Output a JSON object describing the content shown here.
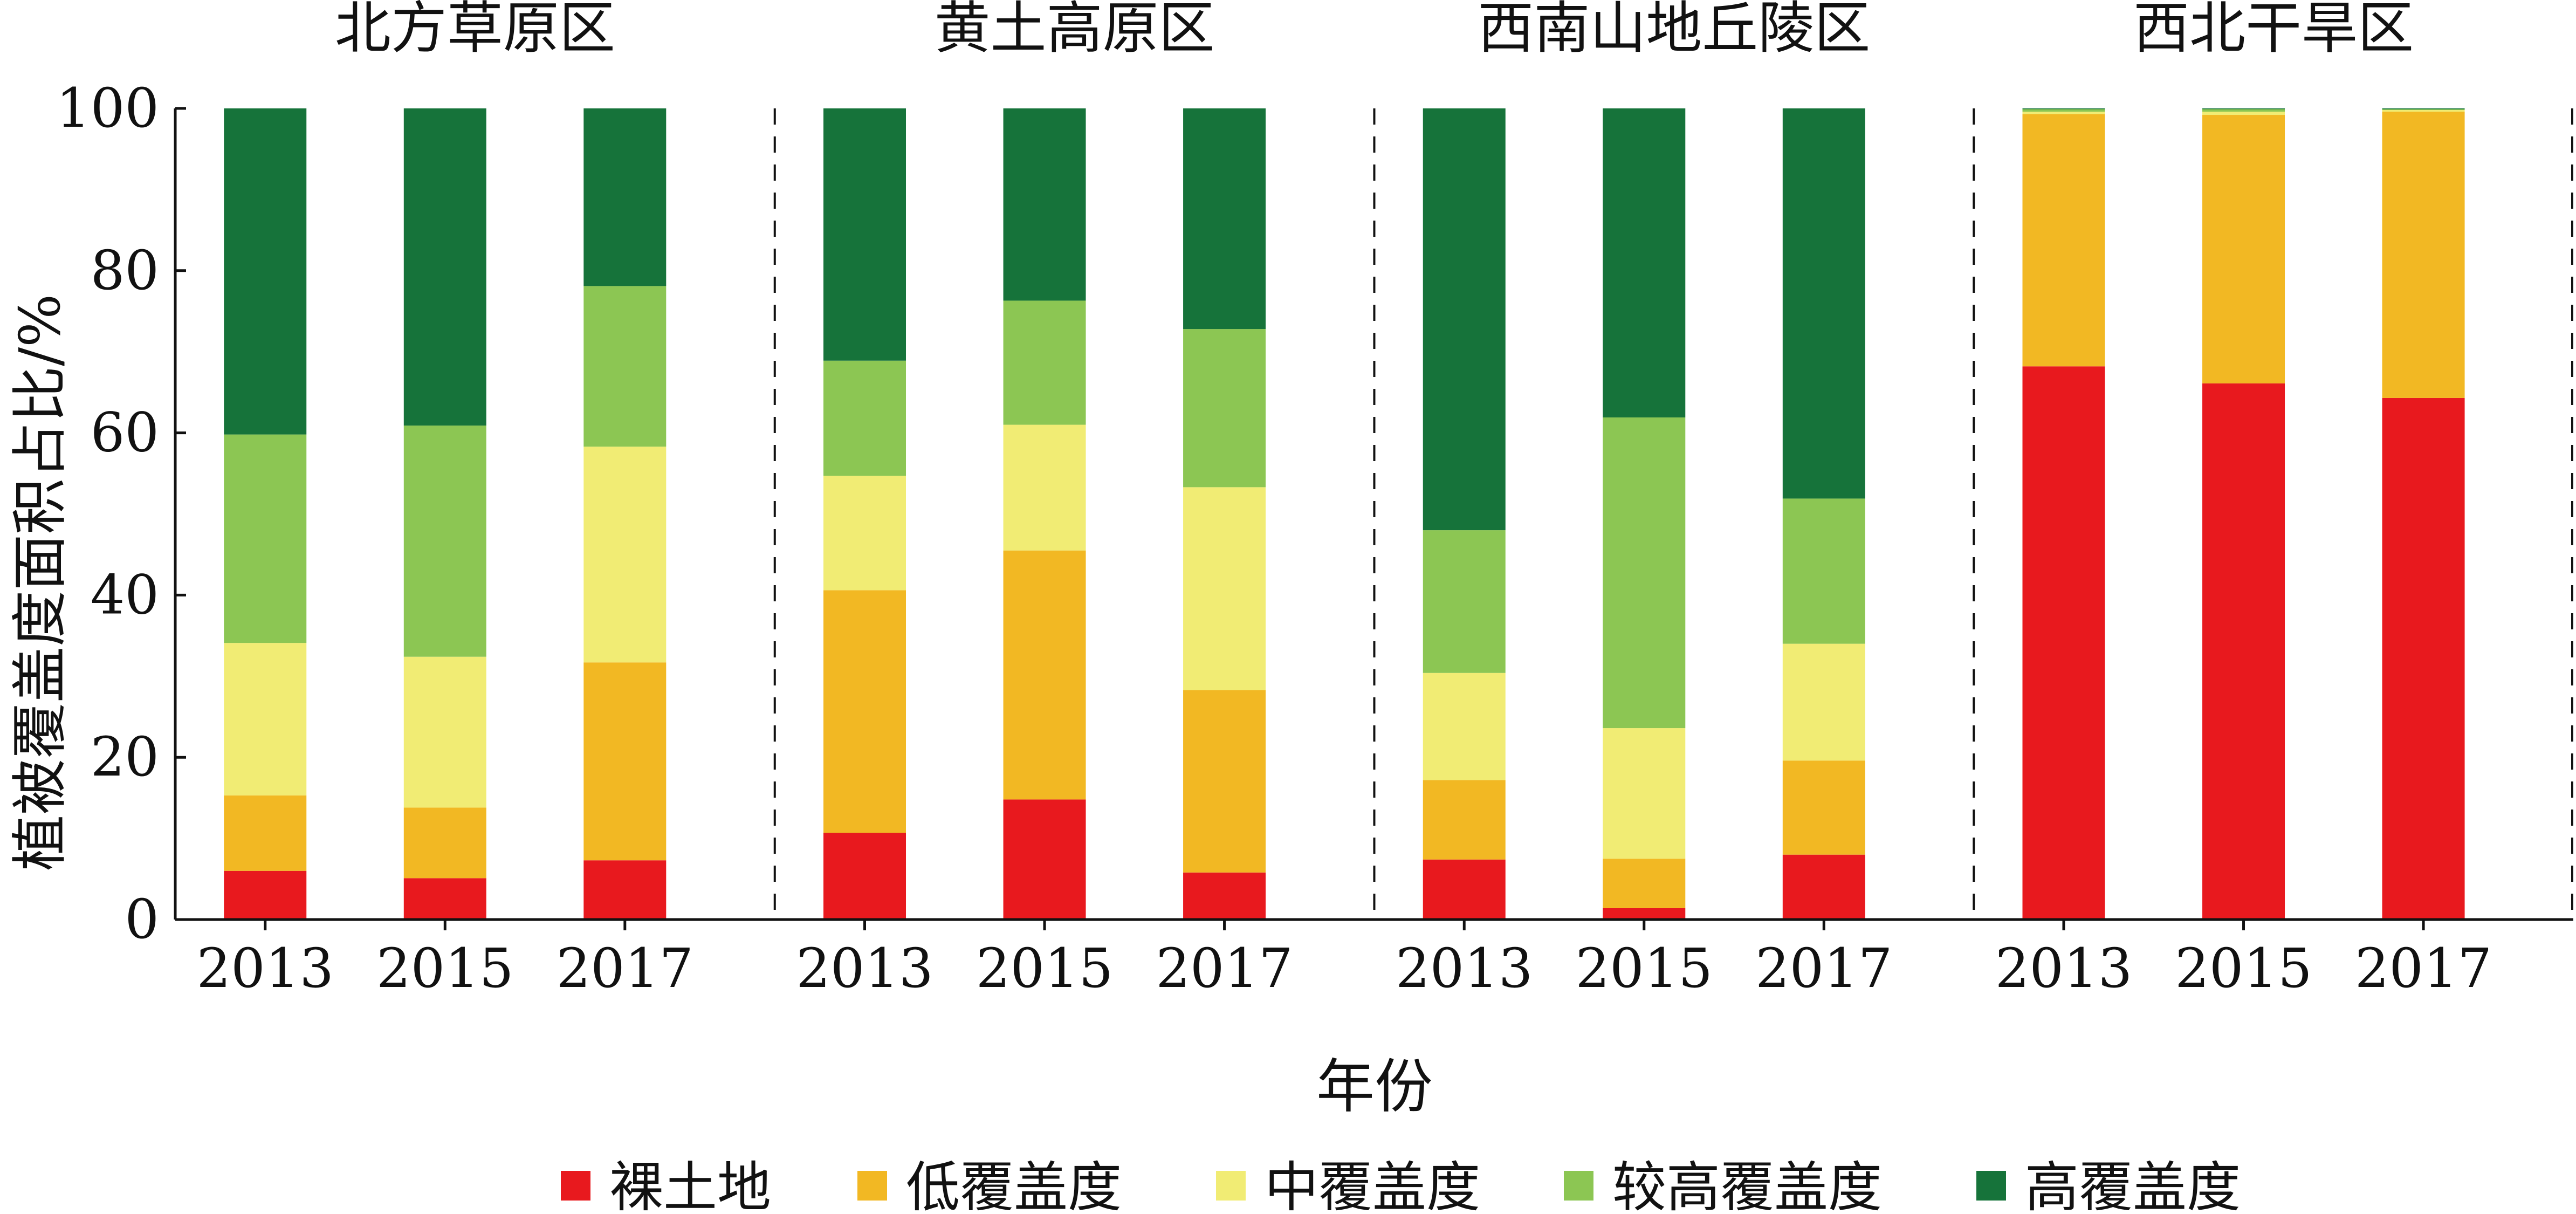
{
  "chart_data": {
    "type": "bar",
    "stacked": true,
    "xlabel": "年份",
    "ylabel": "植被覆盖度面积占比/%",
    "ylim": [
      0,
      100
    ],
    "yticks": [
      0,
      20,
      40,
      60,
      80,
      100
    ],
    "grid": false,
    "legend_position": "bottom",
    "series": [
      {
        "name": "裸土地",
        "color": "#e8191e"
      },
      {
        "name": "低覆盖度",
        "color": "#f2b823"
      },
      {
        "name": "中覆盖度",
        "color": "#f1ec74"
      },
      {
        "name": "较高覆盖度",
        "color": "#8cc653"
      },
      {
        "name": "高覆盖度",
        "color": "#16733a"
      }
    ],
    "regions": [
      {
        "name": "北方草原区",
        "years": [
          "2013",
          "2015",
          "2017"
        ],
        "values": [
          [
            6,
            9.3,
            18.8,
            25.7,
            40.2
          ],
          [
            5.1,
            8.7,
            18.6,
            28.5,
            39.1
          ],
          [
            7.3,
            24.4,
            26.6,
            19.8,
            21.9
          ]
        ]
      },
      {
        "name": "黄土高原区",
        "years": [
          "2013",
          "2015",
          "2017"
        ],
        "values": [
          [
            10.7,
            29.9,
            14.1,
            14.2,
            31.1
          ],
          [
            14.8,
            30.7,
            15.5,
            15.3,
            23.7
          ],
          [
            5.8,
            22.5,
            25,
            19.5,
            27.2
          ]
        ]
      },
      {
        "name": "西南山地丘陵区",
        "years": [
          "2013",
          "2015",
          "2017"
        ],
        "values": [
          [
            7.4,
            9.8,
            13.2,
            17.6,
            52
          ],
          [
            1.4,
            6.1,
            16.1,
            38.3,
            38.1
          ],
          [
            8,
            11.6,
            14.4,
            17.9,
            48.1
          ]
        ]
      },
      {
        "name": "西北干旱区",
        "years": [
          "2013",
          "2015",
          "2017"
        ],
        "values": [
          [
            68.2,
            31.1,
            0.3,
            0.3,
            0.1
          ],
          [
            66.1,
            33.1,
            0.4,
            0.3,
            0.1
          ],
          [
            64.3,
            35.3,
            0.2,
            0.1,
            0.1
          ]
        ]
      }
    ]
  }
}
